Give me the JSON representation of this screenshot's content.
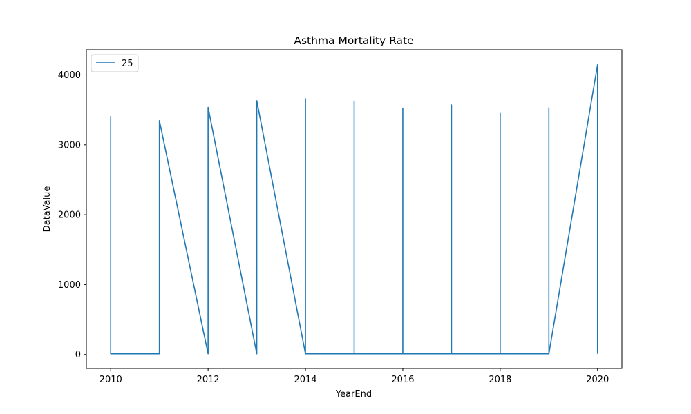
{
  "chart_data": {
    "type": "line",
    "title": "Asthma Mortality Rate",
    "xlabel": "YearEnd",
    "ylabel": "DataValue",
    "xlim": [
      2009.5,
      2020.5
    ],
    "ylim": [
      -200,
      4360
    ],
    "xticks": [
      2010,
      2012,
      2014,
      2016,
      2018,
      2020
    ],
    "yticks": [
      0,
      1000,
      2000,
      3000,
      4000
    ],
    "grid": false,
    "legend_position": "upper-left",
    "series": [
      {
        "name": "25",
        "color": "#1f77b4",
        "x": [
          2010,
          2010,
          2011,
          2011,
          2012,
          2012,
          2013,
          2013,
          2014,
          2014,
          2014,
          2015,
          2015,
          2015,
          2016,
          2016,
          2016,
          2017,
          2017,
          2017,
          2018,
          2018,
          2018,
          2019,
          2019,
          2019,
          2020,
          2020
        ],
        "y": [
          3410,
          10,
          10,
          3345,
          10,
          3535,
          10,
          3630,
          10,
          3660,
          10,
          10,
          3620,
          10,
          10,
          3525,
          10,
          10,
          3570,
          10,
          10,
          3450,
          10,
          10,
          3530,
          10,
          4145,
          10
        ]
      }
    ]
  }
}
